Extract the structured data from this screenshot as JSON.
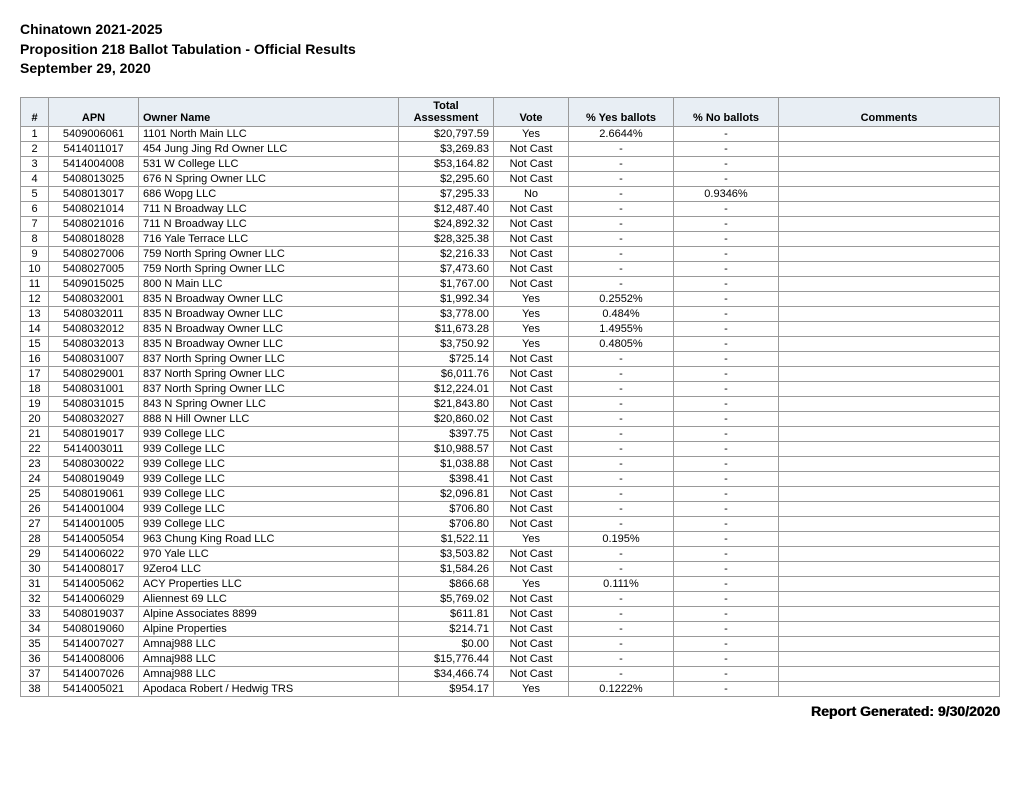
{
  "header": {
    "line1": "Chinatown 2021-2025",
    "line2": "Proposition 218 Ballot Tabulation - Official Results",
    "line3": "September 29, 2020"
  },
  "table": {
    "columns": [
      "#",
      "APN",
      "Owner Name",
      "Total Assessment",
      "Vote",
      "% Yes ballots",
      "% No ballots",
      "Comments"
    ],
    "rows": [
      [
        "1",
        "5409006061",
        "1101 North Main LLC",
        "$20,797.59",
        "Yes",
        "2.6644%",
        "-",
        ""
      ],
      [
        "2",
        "5414011017",
        "454 Jung Jing Rd Owner LLC",
        "$3,269.83",
        "Not Cast",
        "-",
        "-",
        ""
      ],
      [
        "3",
        "5414004008",
        "531 W College LLC",
        "$53,164.82",
        "Not Cast",
        "-",
        "-",
        ""
      ],
      [
        "4",
        "5408013025",
        "676 N Spring Owner LLC",
        "$2,295.60",
        "Not Cast",
        "-",
        "-",
        ""
      ],
      [
        "5",
        "5408013017",
        "686 Wopg LLC",
        "$7,295.33",
        "No",
        "-",
        "0.9346%",
        ""
      ],
      [
        "6",
        "5408021014",
        "711 N Broadway LLC",
        "$12,487.40",
        "Not Cast",
        "-",
        "-",
        ""
      ],
      [
        "7",
        "5408021016",
        "711 N Broadway LLC",
        "$24,892.32",
        "Not Cast",
        "-",
        "-",
        ""
      ],
      [
        "8",
        "5408018028",
        "716 Yale Terrace LLC",
        "$28,325.38",
        "Not Cast",
        "-",
        "-",
        ""
      ],
      [
        "9",
        "5408027006",
        "759 North Spring Owner LLC",
        "$2,216.33",
        "Not Cast",
        "-",
        "-",
        ""
      ],
      [
        "10",
        "5408027005",
        "759 North Spring Owner LLC",
        "$7,473.60",
        "Not Cast",
        "-",
        "-",
        ""
      ],
      [
        "11",
        "5409015025",
        "800 N Main LLC",
        "$1,767.00",
        "Not Cast",
        "-",
        "-",
        ""
      ],
      [
        "12",
        "5408032001",
        "835 N Broadway Owner LLC",
        "$1,992.34",
        "Yes",
        "0.2552%",
        "-",
        ""
      ],
      [
        "13",
        "5408032011",
        "835 N Broadway Owner LLC",
        "$3,778.00",
        "Yes",
        "0.484%",
        "-",
        ""
      ],
      [
        "14",
        "5408032012",
        "835 N Broadway Owner LLC",
        "$11,673.28",
        "Yes",
        "1.4955%",
        "-",
        ""
      ],
      [
        "15",
        "5408032013",
        "835 N Broadway Owner LLC",
        "$3,750.92",
        "Yes",
        "0.4805%",
        "-",
        ""
      ],
      [
        "16",
        "5408031007",
        "837 North Spring Owner LLC",
        "$725.14",
        "Not Cast",
        "-",
        "-",
        ""
      ],
      [
        "17",
        "5408029001",
        "837 North Spring Owner LLC",
        "$6,011.76",
        "Not Cast",
        "-",
        "-",
        ""
      ],
      [
        "18",
        "5408031001",
        "837 North Spring Owner LLC",
        "$12,224.01",
        "Not Cast",
        "-",
        "-",
        ""
      ],
      [
        "19",
        "5408031015",
        "843 N Spring Owner LLC",
        "$21,843.80",
        "Not Cast",
        "-",
        "-",
        ""
      ],
      [
        "20",
        "5408032027",
        "888 N Hill Owner LLC",
        "$20,860.02",
        "Not Cast",
        "-",
        "-",
        ""
      ],
      [
        "21",
        "5408019017",
        "939 College LLC",
        "$397.75",
        "Not Cast",
        "-",
        "-",
        ""
      ],
      [
        "22",
        "5414003011",
        "939 College LLC",
        "$10,988.57",
        "Not Cast",
        "-",
        "-",
        ""
      ],
      [
        "23",
        "5408030022",
        "939 College LLC",
        "$1,038.88",
        "Not Cast",
        "-",
        "-",
        ""
      ],
      [
        "24",
        "5408019049",
        "939 College LLC",
        "$398.41",
        "Not Cast",
        "-",
        "-",
        ""
      ],
      [
        "25",
        "5408019061",
        "939 College LLC",
        "$2,096.81",
        "Not Cast",
        "-",
        "-",
        ""
      ],
      [
        "26",
        "5414001004",
        "939 College LLC",
        "$706.80",
        "Not Cast",
        "-",
        "-",
        ""
      ],
      [
        "27",
        "5414001005",
        "939 College LLC",
        "$706.80",
        "Not Cast",
        "-",
        "-",
        ""
      ],
      [
        "28",
        "5414005054",
        "963 Chung King Road LLC",
        "$1,522.11",
        "Yes",
        "0.195%",
        "-",
        ""
      ],
      [
        "29",
        "5414006022",
        "970 Yale LLC",
        "$3,503.82",
        "Not Cast",
        "-",
        "-",
        ""
      ],
      [
        "30",
        "5414008017",
        "9Zero4 LLC",
        "$1,584.26",
        "Not Cast",
        "-",
        "-",
        ""
      ],
      [
        "31",
        "5414005062",
        "ACY Properties LLC",
        "$866.68",
        "Yes",
        "0.111%",
        "-",
        ""
      ],
      [
        "32",
        "5414006029",
        "Aliennest 69 LLC",
        "$5,769.02",
        "Not Cast",
        "-",
        "-",
        ""
      ],
      [
        "33",
        "5408019037",
        "Alpine Associates 8899",
        "$611.81",
        "Not Cast",
        "-",
        "-",
        ""
      ],
      [
        "34",
        "5408019060",
        "Alpine Properties",
        "$214.71",
        "Not Cast",
        "-",
        "-",
        ""
      ],
      [
        "35",
        "5414007027",
        "Amnaj988 LLC",
        "$0.00",
        "Not Cast",
        "-",
        "-",
        ""
      ],
      [
        "36",
        "5414008006",
        "Amnaj988 LLC",
        "$15,776.44",
        "Not Cast",
        "-",
        "-",
        ""
      ],
      [
        "37",
        "5414007026",
        "Amnaj988 LLC",
        "$34,466.74",
        "Not Cast",
        "-",
        "-",
        ""
      ],
      [
        "38",
        "5414005021",
        "Apodaca Robert / Hedwig TRS",
        "$954.17",
        "Yes",
        "0.1222%",
        "-",
        ""
      ]
    ]
  },
  "footer": "Report Generated: 9/30/2020"
}
